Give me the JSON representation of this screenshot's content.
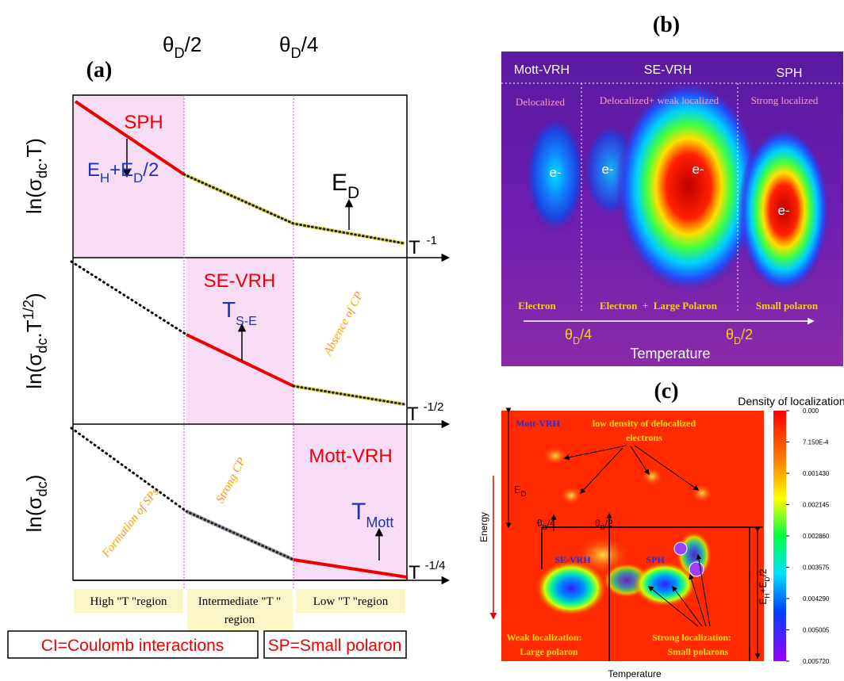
{
  "panel_a": {
    "label": "(a)",
    "theta_labels": [
      [
        "θ",
        "D",
        "/2"
      ],
      [
        "θ",
        "D",
        "/4"
      ]
    ],
    "y_labels": [
      [
        "ln(σ",
        "dc",
        ".T)"
      ],
      [
        "ln(σ",
        "dc",
        ".T",
        "1/2",
        ")"
      ],
      [
        "ln(σ",
        "dc",
        ")"
      ]
    ],
    "x_labels": [
      [
        "T",
        "-1"
      ],
      [
        "T",
        "-1/2"
      ],
      [
        "T",
        "-1/4"
      ]
    ],
    "top": {
      "mechanism": "SPH",
      "energy": [
        "E",
        "H",
        "+E",
        "D",
        "/2"
      ],
      "activation": [
        "E",
        "D"
      ]
    },
    "middle": {
      "mechanism": "SE-VRH",
      "temperature": [
        "T",
        "S-E"
      ],
      "note": "Absence of CP"
    },
    "bottom": {
      "mechanism": "Mott-VRH",
      "temperature": [
        "T",
        "Mott"
      ],
      "notes": [
        "Formation of SPs",
        "Strong CP"
      ]
    },
    "regions": [
      [
        "High \"T \"region"
      ],
      [
        "Intermediate \"T \"",
        "region"
      ],
      [
        "Low \"T \"region"
      ]
    ],
    "legend": [
      "CI=Coulomb interactions",
      "SP=Small polaron"
    ]
  },
  "panel_b": {
    "label": "(b)",
    "mechanisms": [
      "Mott-VRH",
      "SE-VRH",
      "SPH"
    ],
    "states": [
      "Delocalized",
      "Delocalized+ weak localized",
      "Strong localized"
    ],
    "carriers": [
      "e-",
      "e-",
      "e-",
      "e-"
    ],
    "species": [
      "Electron",
      "Electron  +  Large Polaron",
      "Small polaron"
    ],
    "theta_labels": [
      [
        "θ",
        "D",
        "/4"
      ],
      [
        "θ",
        "D",
        "/2"
      ]
    ],
    "axis_label": "Temperature"
  },
  "panel_c": {
    "label": "(c)",
    "colorbar_title": "Density of localization",
    "colorbar_ticks": [
      "0.000",
      "7.150E-4",
      "0.001430",
      "0.002145",
      "0.002860",
      "0.003575",
      "0.004290",
      "0.005005",
      "0.005720"
    ],
    "mechanisms": [
      "Mott-VRH",
      "SE-VRH",
      "SPH"
    ],
    "annotation": [
      "low density of delocalized",
      "electrons"
    ],
    "energy_label": [
      "E",
      "D"
    ],
    "theta_labels": [
      [
        "θ",
        "D",
        "/4"
      ],
      [
        "θ",
        "D",
        "/2"
      ]
    ],
    "gap_label": [
      "E",
      "H",
      "+E",
      "D",
      "/2"
    ],
    "weak": [
      "Weak localization:",
      "Large polaron"
    ],
    "strong": [
      "Strong localization:",
      "Small polarons"
    ],
    "y_axis_label": "Energy",
    "x_axis_label": "Temperature"
  }
}
